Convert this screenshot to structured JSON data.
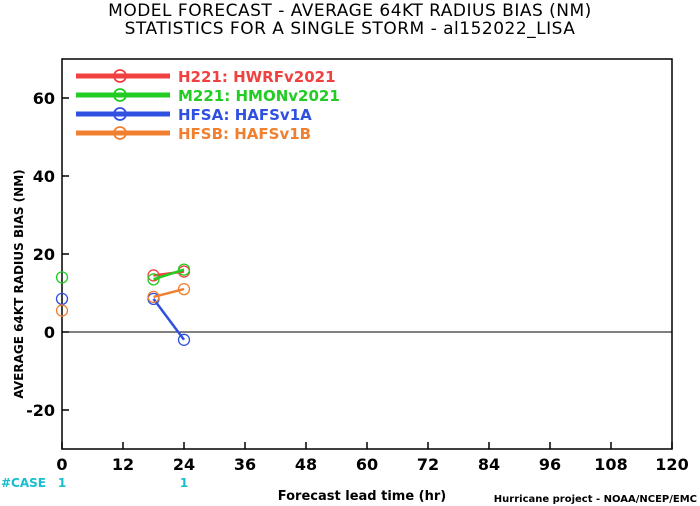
{
  "title_line1": "MODEL FORECAST - AVERAGE 64KT RADIUS BIAS (NM)",
  "title_line2": "STATISTICS FOR A SINGLE STORM - al152022_LISA",
  "credit": "Hurricane project - NOAA/NCEP/EMC",
  "chart_data": {
    "type": "line",
    "title": "MODEL FORECAST - AVERAGE 64KT RADIUS BIAS (NM)",
    "subtitle": "STATISTICS FOR A SINGLE STORM - al152022_LISA",
    "xlabel": "Forecast lead time (hr)",
    "ylabel": "AVERAGE 64KT RADIUS BIAS (NM)",
    "xlim": [
      0,
      120
    ],
    "ylim": [
      -30,
      70
    ],
    "xticks": [
      0,
      12,
      24,
      36,
      48,
      60,
      72,
      84,
      96,
      108,
      120
    ],
    "yticks": [
      -20,
      0,
      20,
      40,
      60
    ],
    "zero_line": true,
    "grid": false,
    "legend_position": "top-left",
    "series": [
      {
        "name": "H221: HWRFv2021",
        "color": "#f04040",
        "x": [
          0,
          18,
          24
        ],
        "y": [
          null,
          14.5,
          15.5
        ]
      },
      {
        "name": "M221: HMONv2021",
        "color": "#22cc22",
        "x": [
          0,
          18,
          24
        ],
        "y": [
          14,
          13.5,
          16
        ]
      },
      {
        "name": "HFSA: HAFSv1A",
        "color": "#3050e0",
        "x": [
          0,
          18,
          24
        ],
        "y": [
          8.5,
          8.5,
          -2
        ]
      },
      {
        "name": "HFSB: HAFSv1B",
        "color": "#f08030",
        "x": [
          0,
          18,
          24
        ],
        "y": [
          5.5,
          9,
          11
        ]
      }
    ],
    "case_label": "#CASE",
    "case_counts": [
      {
        "x": 0,
        "value": "1"
      },
      {
        "x": 24,
        "value": "1"
      }
    ]
  }
}
